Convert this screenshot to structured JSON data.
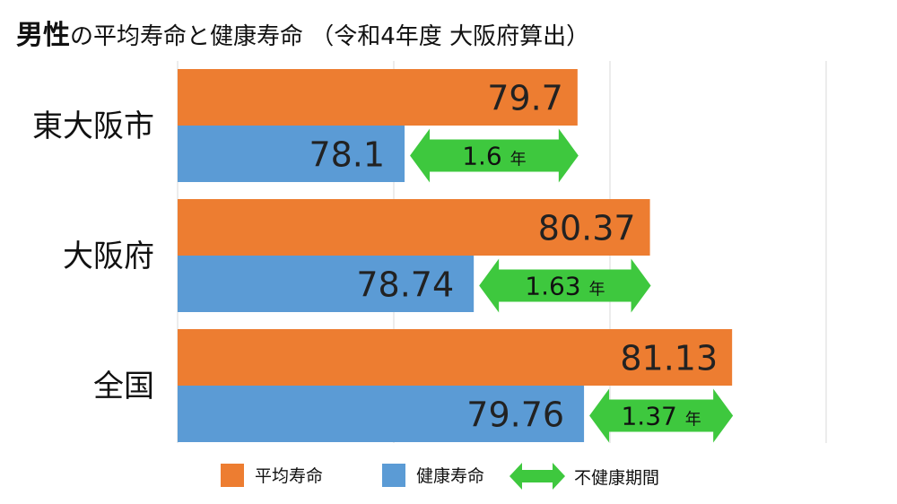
{
  "title": {
    "bold": "男性",
    "rest": "の平均寿命と健康寿命 （令和4年度 大阪府算出）"
  },
  "colors": {
    "average": "#ed7d31",
    "healthy": "#5b9bd5",
    "gap": "#3ec83e",
    "grid": "#d9d9d9"
  },
  "chart_data": {
    "type": "bar",
    "orientation": "horizontal",
    "categories": [
      "東大阪市",
      "大阪府",
      "全国"
    ],
    "series": [
      {
        "name": "平均寿命",
        "values": [
          79.7,
          80.37,
          81.13
        ],
        "labels": [
          "79.7",
          "80.37",
          "81.13"
        ]
      },
      {
        "name": "健康寿命",
        "values": [
          78.1,
          78.74,
          79.76
        ],
        "labels": [
          "78.1",
          "78.74",
          "79.76"
        ]
      }
    ],
    "gap": {
      "name": "不健康期間",
      "values": [
        1.6,
        1.63,
        1.37
      ],
      "labels": [
        "1.6",
        "1.63",
        "1.37"
      ],
      "unit": "年"
    },
    "xlim": [
      76,
      82
    ],
    "grid": true,
    "legend_position": "bottom"
  },
  "legend": [
    {
      "label": "平均寿命",
      "kind": "average"
    },
    {
      "label": "健康寿命",
      "kind": "healthy"
    },
    {
      "label": "不健康期間",
      "kind": "gap"
    }
  ]
}
